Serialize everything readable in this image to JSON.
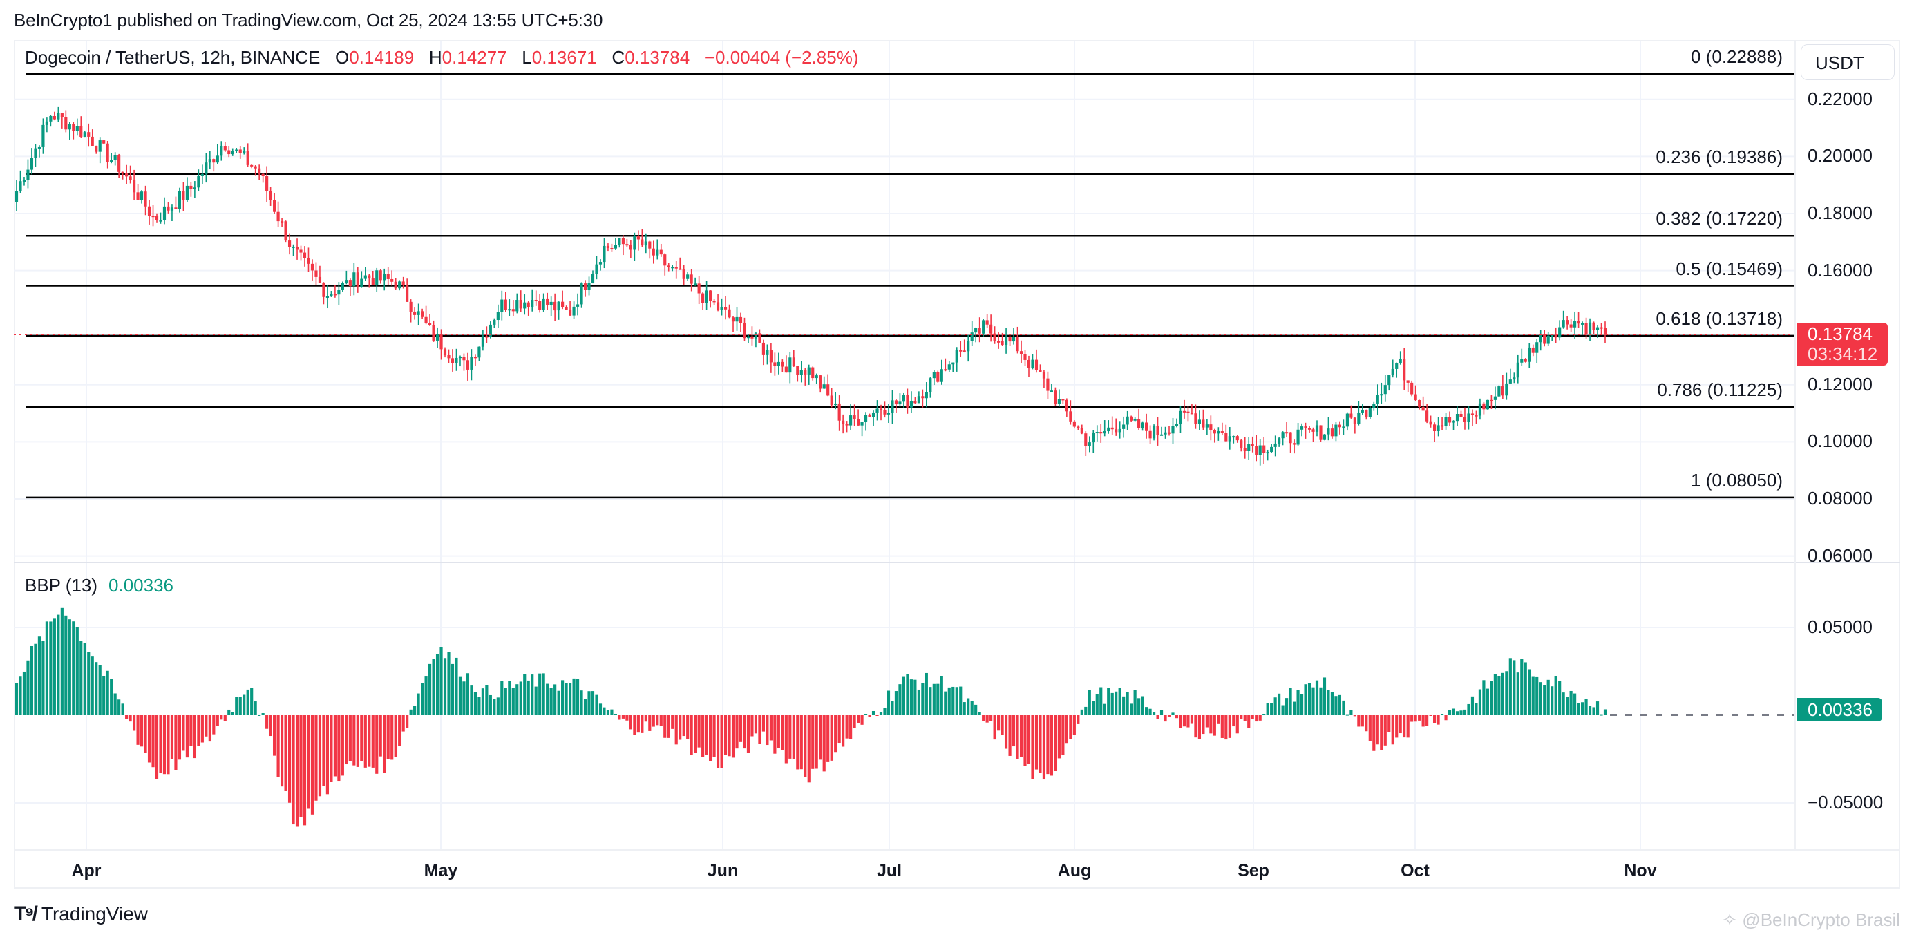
{
  "header": {
    "published": "BeInCrypto1 published on TradingView.com, Oct 25, 2024 13:55 UTC+5:30"
  },
  "legend": {
    "symbol": "Dogecoin / TetherUS, 12h, BINANCE",
    "o_key": "O",
    "o_val": "0.14189",
    "h_key": "H",
    "h_val": "0.14277",
    "l_key": "L",
    "l_val": "0.13671",
    "c_key": "C",
    "c_val": "0.13784",
    "change": "−0.00404 (−2.85%)"
  },
  "currency_button": "USDT",
  "last_price": {
    "value": "0.13784",
    "countdown": "03:34:12"
  },
  "bbp": {
    "label": "BBP (13)",
    "value": "0.00336",
    "tag": "0.00336"
  },
  "price_axis": [
    "0.22000",
    "0.20000",
    "0.18000",
    "0.16000",
    "0.12000",
    "0.10000",
    "0.08000",
    "0.06000"
  ],
  "bbp_axis": [
    "0.05000",
    "−0.05000"
  ],
  "fib_labels": [
    "0 (0.22888)",
    "0.236 (0.19386)",
    "0.382 (0.17220)",
    "0.5 (0.15469)",
    "0.618 (0.13718)",
    "0.786 (0.11225)",
    "1 (0.08050)"
  ],
  "months": [
    "Apr",
    "May",
    "Jun",
    "Jul",
    "Aug",
    "Sep",
    "Oct",
    "Nov"
  ],
  "footer": {
    "brand": "TradingView",
    "watermark": "@BeInCrypto Brasil"
  },
  "colors": {
    "up": "#089981",
    "down": "#f23645",
    "fib_line": "#000000",
    "grid": "#f0f3fa"
  },
  "chart_data": [
    {
      "type": "candlestick",
      "title": "Dogecoin / TetherUS, 12h, BINANCE",
      "xlabel": "",
      "ylabel": "USDT",
      "x_ticks": [
        "Apr",
        "May",
        "Jun",
        "Jul",
        "Aug",
        "Sep",
        "Oct",
        "Nov"
      ],
      "ylim": [
        0.06,
        0.23
      ],
      "y_ticks": [
        0.06,
        0.08,
        0.1,
        0.12,
        0.16,
        0.18,
        0.2,
        0.22
      ],
      "last": {
        "open": 0.14189,
        "high": 0.14277,
        "low": 0.13671,
        "close": 0.13784,
        "change": -0.00404,
        "change_pct": -2.85
      },
      "fibonacci_retracement": [
        {
          "level": 0,
          "price": 0.22888
        },
        {
          "level": 0.236,
          "price": 0.19386
        },
        {
          "level": 0.382,
          "price": 0.1722
        },
        {
          "level": 0.5,
          "price": 0.15469
        },
        {
          "level": 0.618,
          "price": 0.13718
        },
        {
          "level": 0.786,
          "price": 0.11225
        },
        {
          "level": 1,
          "price": 0.0805
        }
      ],
      "approx_close_path": {
        "x": [
          "Mar 27",
          "Mar 28",
          "Apr 1",
          "Apr 3",
          "Apr 5",
          "Apr 8",
          "Apr 10",
          "Apr 13",
          "Apr 14",
          "Apr 18",
          "Apr 22",
          "Apr 26",
          "Apr 30",
          "May 2",
          "May 5",
          "May 10",
          "May 15",
          "May 20",
          "May 28",
          "Jun 3",
          "Jun 7",
          "Jun 12",
          "Jun 17",
          "Jun 24",
          "Jul 1",
          "Jul 5",
          "Jul 10",
          "Jul 15",
          "Jul 21",
          "Jul 25",
          "Jul 30",
          "Aug 5",
          "Aug 10",
          "Aug 15",
          "Aug 20",
          "Aug 25",
          "Sep 1",
          "Sep 6",
          "Sep 12",
          "Sep 20",
          "Sep 28",
          "Oct 3",
          "Oct 8",
          "Oct 13",
          "Oct 17",
          "Oct 21",
          "Oct 25"
        ],
        "close": [
          0.188,
          0.215,
          0.208,
          0.196,
          0.178,
          0.188,
          0.205,
          0.195,
          0.167,
          0.152,
          0.158,
          0.156,
          0.138,
          0.126,
          0.148,
          0.15,
          0.145,
          0.168,
          0.17,
          0.16,
          0.15,
          0.14,
          0.128,
          0.125,
          0.106,
          0.112,
          0.115,
          0.128,
          0.14,
          0.133,
          0.117,
          0.1,
          0.107,
          0.103,
          0.11,
          0.102,
          0.098,
          0.102,
          0.104,
          0.11,
          0.128,
          0.106,
          0.108,
          0.118,
          0.135,
          0.143,
          0.1378
        ]
      }
    },
    {
      "type": "bar",
      "title": "BBP (13)",
      "ylim": [
        -0.07,
        0.07
      ],
      "y_ticks": [
        0.05,
        -0.05
      ],
      "last_value": 0.00336,
      "approx_series": {
        "x": [
          "Mar 27",
          "Mar 30",
          "Apr 3",
          "Apr 7",
          "Apr 12",
          "Apr 16",
          "Apr 20",
          "Apr 25",
          "May 1",
          "May 5",
          "May 12",
          "May 20",
          "May 27",
          "Jun 3",
          "Jun 10",
          "Jun 17",
          "Jun 24",
          "Jul 1",
          "Jul 5",
          "Jul 15",
          "Jul 21",
          "Jul 28",
          "Aug 5",
          "Aug 10",
          "Aug 20",
          "Aug 28",
          "Sep 5",
          "Sep 15",
          "Sep 25",
          "Oct 1",
          "Oct 5",
          "Oct 10",
          "Oct 17",
          "Oct 21",
          "Oct 25"
        ],
        "values": [
          0.022,
          0.063,
          0.018,
          -0.034,
          -0.018,
          0.02,
          -0.064,
          -0.03,
          -0.028,
          0.04,
          0.012,
          0.02,
          0.017,
          -0.005,
          -0.01,
          -0.028,
          -0.012,
          -0.035,
          -0.008,
          0.02,
          0.018,
          -0.012,
          -0.04,
          0.012,
          0.01,
          -0.008,
          -0.01,
          0.008,
          0.02,
          -0.018,
          -0.005,
          0.005,
          0.03,
          0.018,
          0.00336
        ]
      }
    }
  ]
}
